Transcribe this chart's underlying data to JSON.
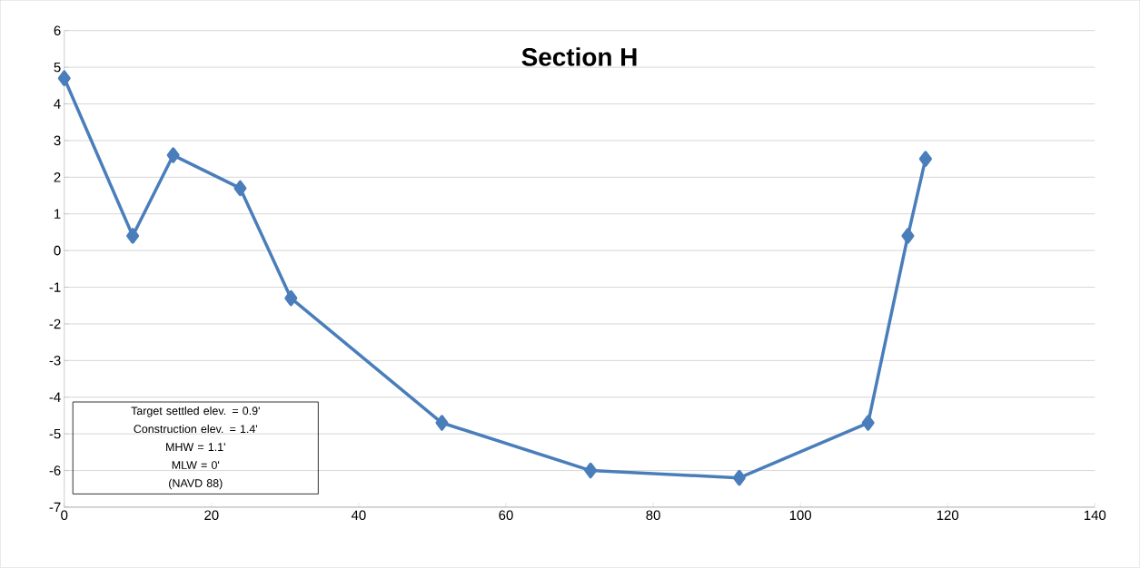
{
  "chart_data": {
    "type": "line",
    "title": "Section H",
    "x": [
      0,
      9.3,
      14.8,
      23.9,
      30.8,
      51.3,
      71.5,
      91.7,
      109.2,
      114.6,
      117.0
    ],
    "values": [
      4.7,
      0.4,
      2.6,
      1.7,
      -1.3,
      -4.7,
      -6.0,
      -6.2,
      -4.7,
      0.4,
      2.5
    ],
    "color": "#4a7ebb",
    "marker": "diamond",
    "line_style": "solid",
    "grid": "y",
    "xlim": [
      0,
      140
    ],
    "xticks": [
      0,
      20,
      40,
      60,
      80,
      100,
      120,
      140
    ],
    "ylim": [
      -7,
      6
    ],
    "yticks": [
      -7,
      -6,
      -5,
      -4,
      -3,
      -2,
      -1,
      0,
      1,
      2,
      3,
      4,
      5,
      6
    ],
    "annotations": [
      "Target settled elev. = 0.9'",
      "Construction elev. = 1.4'",
      "MHW = 1.1'",
      "MLW = 0'",
      "(NAVD 88)"
    ]
  }
}
